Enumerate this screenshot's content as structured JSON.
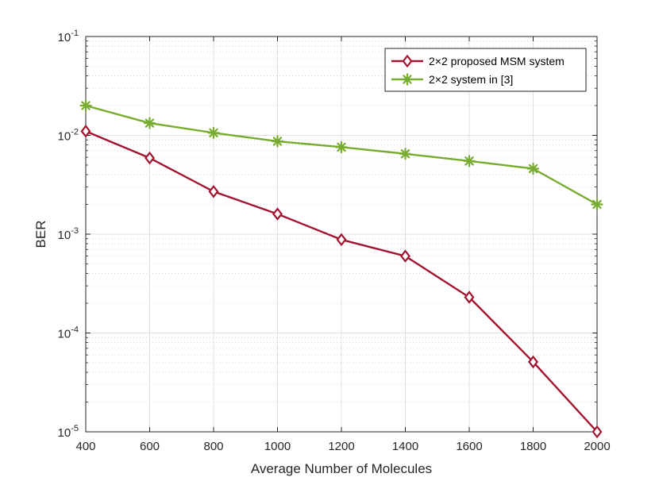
{
  "chart_data": {
    "type": "line",
    "title": "",
    "xlabel": "Average Number of Molecules",
    "ylabel": "BER",
    "xlim": [
      400,
      2000
    ],
    "ylim": [
      1e-05,
      0.1
    ],
    "yscale": "log",
    "grid": true,
    "legend_position": "top-right",
    "x": [
      400,
      600,
      800,
      1000,
      1200,
      1400,
      1600,
      1800,
      2000
    ],
    "x_ticks": [
      "400",
      "600",
      "800",
      "1000",
      "1200",
      "1400",
      "1600",
      "1800",
      "2000"
    ],
    "y_ticks": [
      {
        "base": "10",
        "exp": "-5",
        "value": 1e-05
      },
      {
        "base": "10",
        "exp": "-4",
        "value": 0.0001
      },
      {
        "base": "10",
        "exp": "-3",
        "value": 0.001
      },
      {
        "base": "10",
        "exp": "-2",
        "value": 0.01
      },
      {
        "base": "10",
        "exp": "-1",
        "value": 0.1
      }
    ],
    "series": [
      {
        "name": "2×2 proposed MSM system",
        "name_parts": [
          "2",
          "×",
          "2 proposed MSM system"
        ],
        "color": "#A2142F",
        "marker": "diamond",
        "values": [
          0.011,
          0.0059,
          0.0027,
          0.0016,
          0.00088,
          0.0006,
          0.00023,
          5.1e-05,
          1e-05
        ]
      },
      {
        "name": "2×2 system in [3]",
        "name_parts": [
          "2",
          "×",
          "2 system in [3]"
        ],
        "color": "#77AC30",
        "marker": "asterisk",
        "values": [
          0.02,
          0.0133,
          0.0106,
          0.0087,
          0.0076,
          0.0065,
          0.0055,
          0.0046,
          0.002
        ]
      }
    ]
  }
}
